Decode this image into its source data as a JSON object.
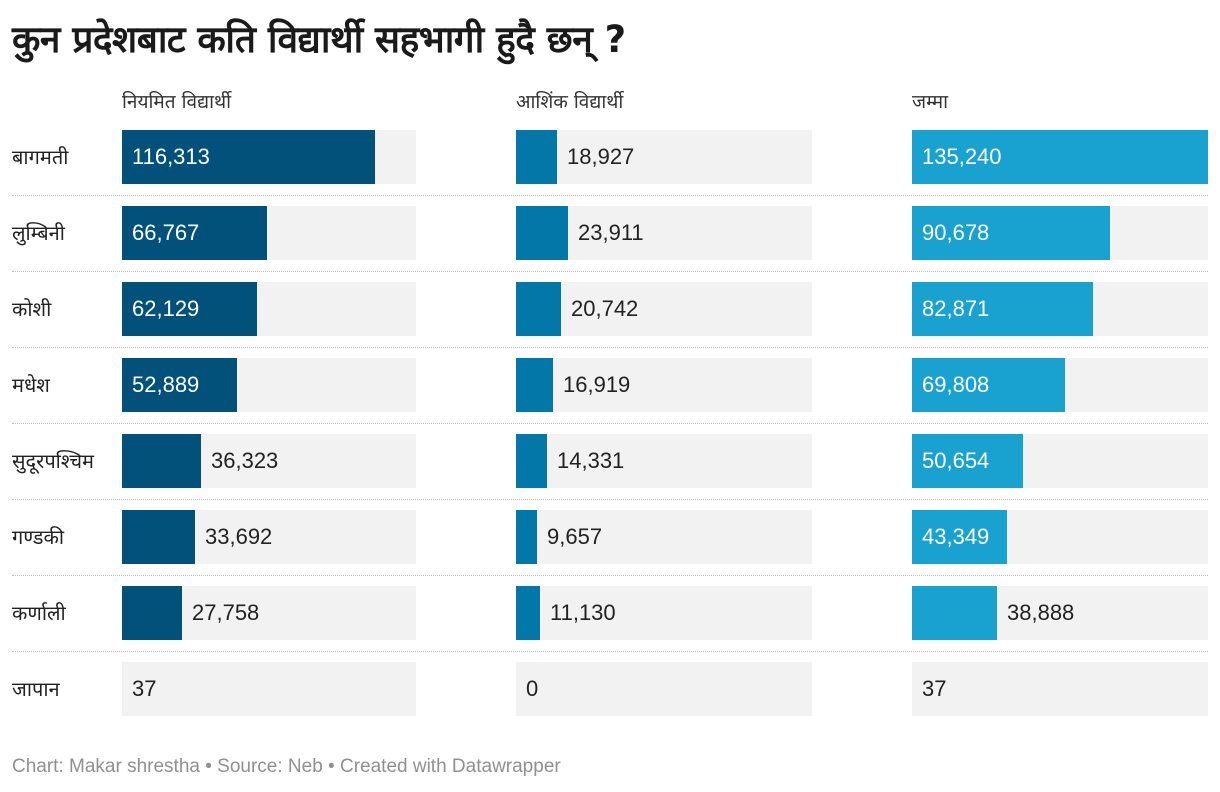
{
  "chart_data": {
    "type": "table",
    "title": "कुन प्रदेशबाट कति विद्यार्थी सहभागी हुदै छन् ?",
    "columns": [
      {
        "key": "regular",
        "label": "नियमित विद्यार्थी",
        "color": "#01517a",
        "max": 135240
      },
      {
        "key": "partial",
        "label": "आशिंक विद्यार्थी",
        "color": "#0277a8",
        "max": 135240
      },
      {
        "key": "total",
        "label": "जम्मा",
        "color": "#19a2cf",
        "max": 135240
      }
    ],
    "rows": [
      {
        "label": "बागमती",
        "regular": 116313,
        "regular_text": "116,313",
        "partial": 18927,
        "partial_text": "18,927",
        "total": 135240,
        "total_text": "135,240"
      },
      {
        "label": "लुम्बिनी",
        "regular": 66767,
        "regular_text": "66,767",
        "partial": 23911,
        "partial_text": "23,911",
        "total": 90678,
        "total_text": "90,678"
      },
      {
        "label": "कोशी",
        "regular": 62129,
        "regular_text": "62,129",
        "partial": 20742,
        "partial_text": "20,742",
        "total": 82871,
        "total_text": "82,871"
      },
      {
        "label": "मधेश",
        "regular": 52889,
        "regular_text": "52,889",
        "partial": 16919,
        "partial_text": "16,919",
        "total": 69808,
        "total_text": "69,808"
      },
      {
        "label": "सुदूरपश्चिम",
        "regular": 36323,
        "regular_text": "36,323",
        "partial": 14331,
        "partial_text": "14,331",
        "total": 50654,
        "total_text": "50,654"
      },
      {
        "label": "गण्डकी",
        "regular": 33692,
        "regular_text": "33,692",
        "partial": 9657,
        "partial_text": "9,657",
        "total": 43349,
        "total_text": "43,349"
      },
      {
        "label": "कर्णाली",
        "regular": 27758,
        "regular_text": "27,758",
        "partial": 11130,
        "partial_text": "11,130",
        "total": 38888,
        "total_text": "38,888"
      },
      {
        "label": "जापान",
        "regular": 37,
        "regular_text": "37",
        "partial": 0,
        "partial_text": "0",
        "total": 37,
        "total_text": "37"
      }
    ]
  },
  "footer": "Chart: Makar shrestha  • Source: Neb • Created with Datawrapper"
}
